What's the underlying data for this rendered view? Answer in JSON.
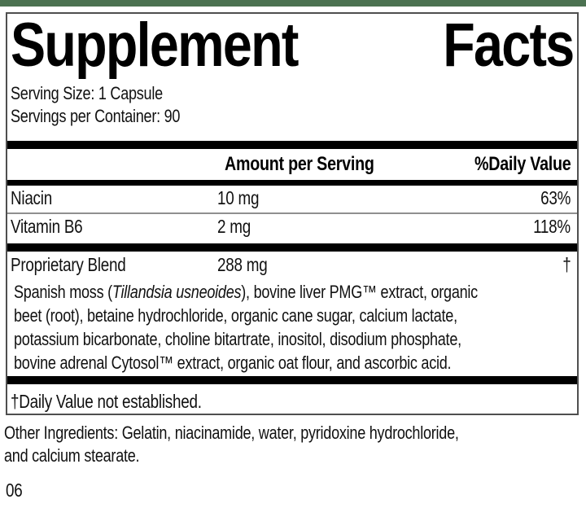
{
  "colors": {
    "brand_green": "#4c7251",
    "bar_black": "#000000",
    "divider_gray": "#8f8f8f",
    "box_border": "#4f4f4f"
  },
  "label": {
    "title": {
      "left": "Supplement",
      "right": "Facts"
    },
    "serving_size": "Serving Size: 1 Capsule",
    "servings_per_container": "Servings per Container: 90",
    "columns": {
      "amount": "Amount per Serving",
      "daily_value": "%Daily Value"
    },
    "nutrients": [
      {
        "name": "Niacin",
        "amount": "10 mg",
        "daily_value": "63%"
      },
      {
        "name": "Vitamin B6",
        "amount": "2 mg",
        "daily_value": "118%"
      }
    ],
    "proprietary_blend": {
      "name": "Proprietary Blend",
      "amount": "288 mg",
      "daily_value": "†",
      "description_lines": [
        [
          {
            "text": "Spanish moss ("
          },
          {
            "text": "Tillandsia usneoides",
            "italic": true
          },
          {
            "text": "), bovine liver PMG™ extract, organic"
          }
        ],
        [
          {
            "text": "beet (root), betaine hydrochloride, organic cane sugar, calcium lactate,"
          }
        ],
        [
          {
            "text": "potassium bicarbonate, choline bitartrate, inositol, disodium phosphate,"
          }
        ],
        [
          {
            "text": "bovine adrenal Cytosol™ extract, organic oat flour, and ascorbic acid."
          }
        ]
      ]
    },
    "footnote": "†Daily Value not established.",
    "other_ingredients_lines": [
      "Other Ingredients: Gelatin, niacinamide, water, pyridoxine hydrochloride,",
      "and calcium stearate."
    ],
    "code": "06"
  }
}
